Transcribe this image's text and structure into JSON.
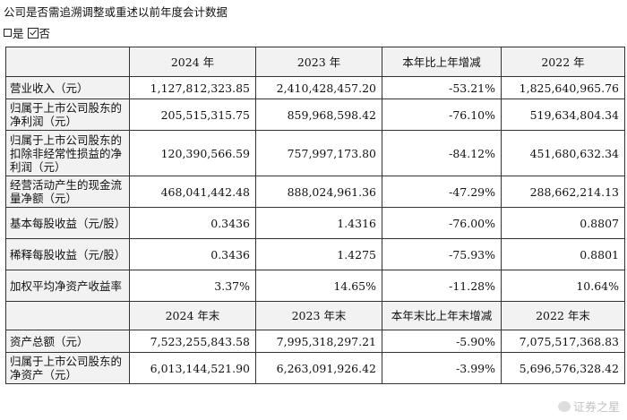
{
  "heading": "公司是否需追溯调整或重述以前年度会计数据",
  "options": {
    "yes": "是",
    "no": "否"
  },
  "header1": [
    "",
    "2024 年",
    "2023 年",
    "本年比上年增减",
    "2022 年"
  ],
  "header2": [
    "",
    "2024 年末",
    "2023 年末",
    "本年末比上年末增减",
    "2022 年末"
  ],
  "rows1": [
    {
      "label": "营业收入（元）",
      "values": [
        "1,127,812,323.85",
        "2,410,428,457.20",
        "-53.21%",
        "1,825,640,965.76"
      ]
    },
    {
      "label": "归属于上市公司股东的净利润（元）",
      "values": [
        "205,515,315.75",
        "859,968,598.42",
        "-76.10%",
        "519,634,804.34"
      ]
    },
    {
      "label": "归属于上市公司股东的扣除非经常性损益的净利润（元）",
      "values": [
        "120,390,566.59",
        "757,997,173.80",
        "-84.12%",
        "451,680,632.34"
      ]
    },
    {
      "label": "经营活动产生的现金流量净额（元）",
      "values": [
        "468,041,442.48",
        "888,024,961.36",
        "-47.29%",
        "288,662,214.13"
      ]
    },
    {
      "label": "基本每股收益（元/股）",
      "values": [
        "0.3436",
        "1.4316",
        "-76.00%",
        "0.8807"
      ]
    },
    {
      "label": "稀释每股收益（元/股）",
      "values": [
        "0.3436",
        "1.4275",
        "-75.93%",
        "0.8801"
      ]
    },
    {
      "label": "加权平均净资产收益率",
      "values": [
        "3.37%",
        "14.65%",
        "-11.28%",
        "10.64%"
      ]
    }
  ],
  "rows2": [
    {
      "label": "资产总额（元）",
      "values": [
        "7,523,255,843.58",
        "7,995,318,297.21",
        "-5.90%",
        "7,075,517,368.83"
      ]
    },
    {
      "label": "归属于上市公司股东的净资产（元）",
      "values": [
        "6,013,144,521.90",
        "6,263,091,926.42",
        "-3.99%",
        "5,696,576,328.42"
      ]
    }
  ],
  "watermark": "证券之星"
}
